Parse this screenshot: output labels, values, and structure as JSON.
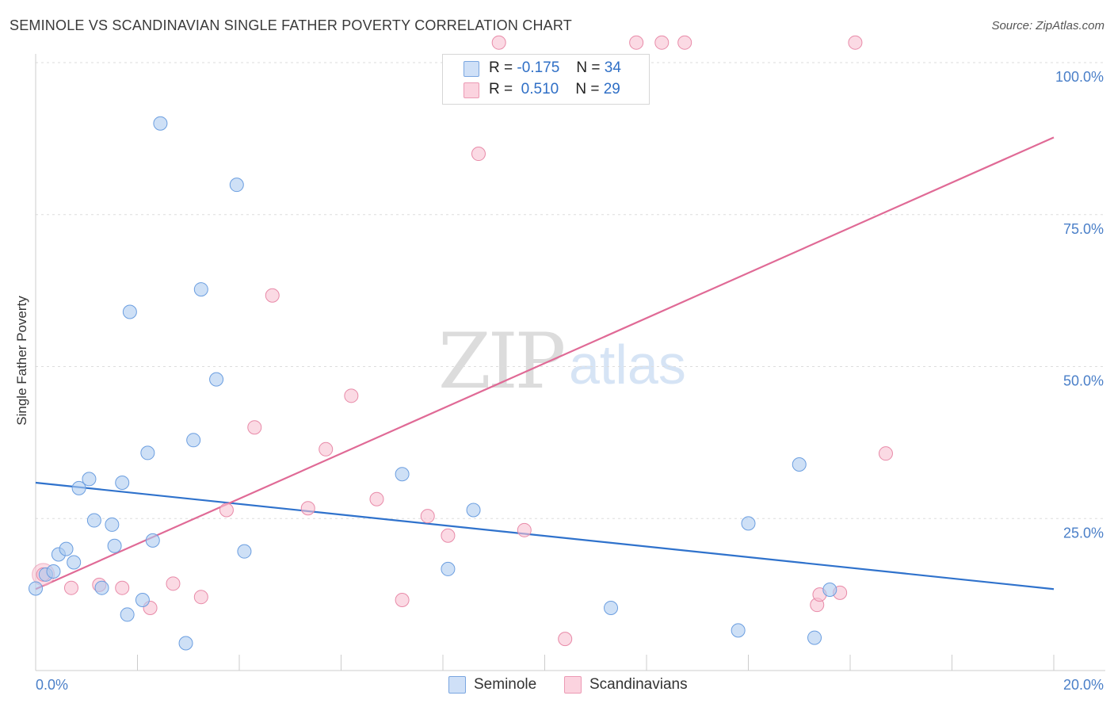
{
  "header": {
    "title": "SEMINOLE VS SCANDINAVIAN SINGLE FATHER POVERTY CORRELATION CHART",
    "source": "Source: ZipAtlas.com"
  },
  "watermark": {
    "zip": "ZIP",
    "atlas": "atlas"
  },
  "legend": {
    "rows": [
      {
        "r_label": "R =",
        "r_value": "-0.175",
        "n_label": "N =",
        "n_value": "34",
        "color": "#a8c8f0"
      },
      {
        "r_label": "R =",
        "r_value": "0.510",
        "n_label": "N =",
        "n_value": "29",
        "color": "#f7b8cb"
      }
    ]
  },
  "bottom_legend": [
    {
      "label": "Seminole",
      "color": "#a8c8f0"
    },
    {
      "label": "Scandinavians",
      "color": "#f7b8cb"
    }
  ],
  "colors": {
    "seminole_fill": "#aecbf0",
    "seminole_stroke": "#6b9ee0",
    "seminole_line": "#2f72cc",
    "scand_fill": "#f8c1d2",
    "scand_stroke": "#e88aa8",
    "scand_line": "#e06a96",
    "grid": "#dddddd",
    "tick_text": "#4a7fc8"
  },
  "chart_data": {
    "type": "scatter",
    "title": "SEMINOLE VS SCANDINAVIAN SINGLE FATHER POVERTY CORRELATION CHART",
    "xlabel": "",
    "ylabel": "Single Father Poverty",
    "xlim": [
      0,
      20
    ],
    "ylim": [
      0,
      100
    ],
    "x_ticks": [
      {
        "value": 0,
        "label": "0.0%"
      },
      {
        "value": 20,
        "label": "20.0%"
      }
    ],
    "y_ticks": [
      {
        "value": 25,
        "label": "25.0%"
      },
      {
        "value": 50,
        "label": "50.0%"
      },
      {
        "value": 75,
        "label": "75.0%"
      },
      {
        "value": 100,
        "label": "100.0%"
      }
    ],
    "grid": true,
    "legend_position": "top-center",
    "series": [
      {
        "name": "Seminole",
        "points": [
          [
            0.0,
            13.5
          ],
          [
            0.2,
            15.8
          ],
          [
            0.35,
            16.3
          ],
          [
            0.45,
            19.1
          ],
          [
            0.6,
            20.0
          ],
          [
            0.75,
            17.8
          ],
          [
            0.85,
            30.0
          ],
          [
            1.05,
            31.5
          ],
          [
            1.15,
            24.7
          ],
          [
            1.3,
            13.6
          ],
          [
            1.5,
            24.0
          ],
          [
            1.55,
            20.5
          ],
          [
            1.7,
            30.9
          ],
          [
            1.8,
            9.2
          ],
          [
            1.85,
            59.0
          ],
          [
            2.1,
            11.6
          ],
          [
            2.2,
            35.8
          ],
          [
            2.3,
            21.4
          ],
          [
            2.45,
            90.0
          ],
          [
            2.95,
            4.5
          ],
          [
            3.1,
            37.9
          ],
          [
            3.25,
            62.7
          ],
          [
            3.55,
            47.9
          ],
          [
            3.95,
            79.9
          ],
          [
            4.1,
            19.6
          ],
          [
            7.2,
            32.3
          ],
          [
            8.1,
            16.7
          ],
          [
            8.6,
            26.4
          ],
          [
            11.3,
            10.3
          ],
          [
            14.0,
            24.2
          ],
          [
            13.8,
            6.6
          ],
          [
            15.0,
            33.9
          ],
          [
            15.3,
            5.4
          ],
          [
            15.6,
            13.3
          ]
        ]
      },
      {
        "name": "Scandinavians",
        "points": [
          [
            0.15,
            15.8
          ],
          [
            0.7,
            13.6
          ],
          [
            1.25,
            14.1
          ],
          [
            1.7,
            13.6
          ],
          [
            2.25,
            10.3
          ],
          [
            2.7,
            14.3
          ],
          [
            3.25,
            12.1
          ],
          [
            3.75,
            26.4
          ],
          [
            4.3,
            40.0
          ],
          [
            4.65,
            61.7
          ],
          [
            5.35,
            26.7
          ],
          [
            5.7,
            36.4
          ],
          [
            6.2,
            45.2
          ],
          [
            6.7,
            28.2
          ],
          [
            7.2,
            11.6
          ],
          [
            7.7,
            25.4
          ],
          [
            8.1,
            22.2
          ],
          [
            8.7,
            85.0
          ],
          [
            9.1,
            104.0
          ],
          [
            9.6,
            23.1
          ],
          [
            10.4,
            5.2
          ],
          [
            11.8,
            104.0
          ],
          [
            12.3,
            104.0
          ],
          [
            12.75,
            104.0
          ],
          [
            15.35,
            10.8
          ],
          [
            15.8,
            12.8
          ],
          [
            15.4,
            12.5
          ],
          [
            16.1,
            104.0
          ],
          [
            16.7,
            35.7
          ]
        ]
      }
    ],
    "trend_lines": [
      {
        "name": "Seminole",
        "x": [
          0,
          20
        ],
        "y": [
          30.9,
          13.4
        ]
      },
      {
        "name": "Scandinavians",
        "x": [
          0,
          20
        ],
        "y": [
          13.4,
          87.7
        ]
      }
    ]
  },
  "stats": {
    "seminole": {
      "r": -0.175,
      "n": 34
    },
    "scandinavians": {
      "r": 0.51,
      "n": 29
    }
  }
}
